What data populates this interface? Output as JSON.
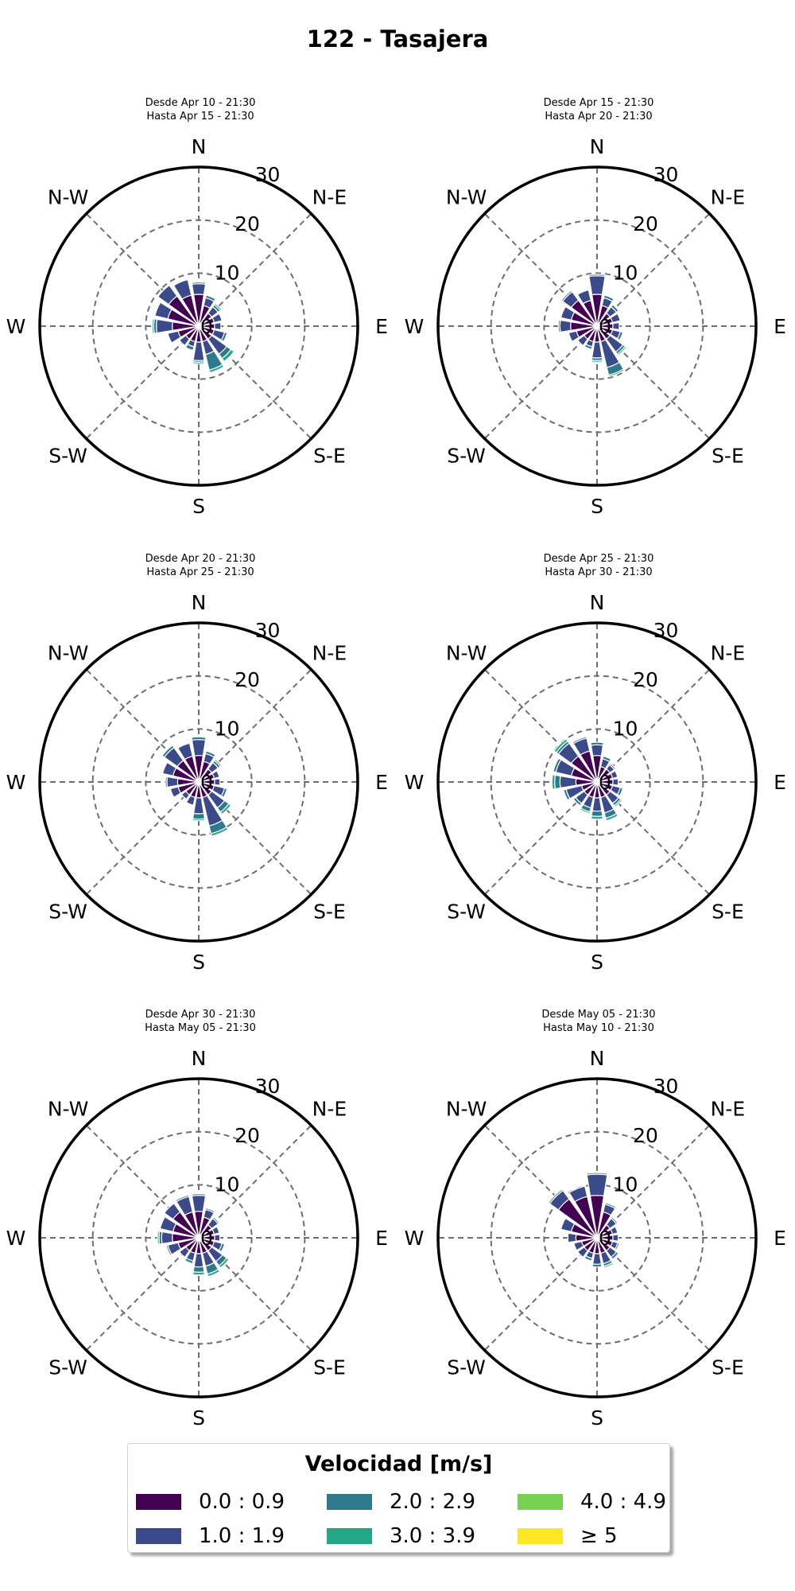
{
  "title": "122 - Tasajera",
  "directions": [
    "N",
    "N-E",
    "E",
    "S-E",
    "S",
    "S-W",
    "W",
    "N-W"
  ],
  "ring_labels": [
    "0",
    "10",
    "20",
    "30"
  ],
  "legend": {
    "title": "Velocidad [m/s]",
    "bins": [
      {
        "label": "0.0 : 0.9",
        "color": "#440154"
      },
      {
        "label": "1.0 : 1.9",
        "color": "#3b4a8a"
      },
      {
        "label": "2.0 : 2.9",
        "color": "#2c7a8c"
      },
      {
        "label": "3.0 : 3.9",
        "color": "#22a884"
      },
      {
        "label": "4.0 : 4.9",
        "color": "#7ad151"
      },
      {
        "label": "≥  5",
        "color": "#fde725"
      }
    ]
  },
  "panels": [
    {
      "desde": "Desde Apr 10 - 21:30",
      "hasta": "Hasta Apr 15 - 21:30"
    },
    {
      "desde": "Desde Apr 15 - 21:30",
      "hasta": "Hasta Apr 20 - 21:30"
    },
    {
      "desde": "Desde Apr 20 - 21:30",
      "hasta": "Hasta Apr 25 - 21:30"
    },
    {
      "desde": "Desde Apr 25 - 21:30",
      "hasta": "Hasta Apr 30 - 21:30"
    },
    {
      "desde": "Desde Apr 30 - 21:30",
      "hasta": "Hasta May 05 - 21:30"
    },
    {
      "desde": "Desde May 05 - 21:30",
      "hasta": "Hasta May 10 - 21:30"
    }
  ],
  "chart_data": [
    {
      "type": "windrose",
      "rmax": 30,
      "rticks": [
        0,
        10,
        20,
        30
      ],
      "sectors": 16,
      "directions_deg": [
        0,
        22.5,
        45,
        67.5,
        90,
        112.5,
        135,
        157.5,
        180,
        202.5,
        225,
        247.5,
        270,
        292.5,
        315,
        337.5
      ],
      "bins": [
        "0.0 : 0.9",
        "1.0 : 1.9",
        "2.0 : 2.9",
        "3.0 : 3.9",
        "4.0 : 4.9",
        "≥  5"
      ],
      "values": [
        [
          6,
          2,
          0.3,
          0,
          0,
          0
        ],
        [
          4,
          1.5,
          0.5,
          0,
          0,
          0
        ],
        [
          3,
          1.5,
          0.5,
          0.3,
          0,
          0
        ],
        [
          3,
          1.5,
          0,
          0,
          0,
          0
        ],
        [
          3,
          1.2,
          0,
          0,
          0,
          0
        ],
        [
          3,
          2,
          0.5,
          0,
          0,
          0
        ],
        [
          3,
          3.5,
          1,
          0.7,
          0,
          0
        ],
        [
          3,
          2.5,
          3,
          0.5,
          0,
          0
        ],
        [
          3,
          3.5,
          0.3,
          0.3,
          0,
          0
        ],
        [
          3,
          1,
          0.7,
          0,
          0,
          0
        ],
        [
          3,
          1.5,
          0,
          0,
          0,
          0
        ],
        [
          4,
          2,
          0,
          0,
          0,
          0
        ],
        [
          5,
          3,
          0.5,
          0.3,
          0,
          0
        ],
        [
          6,
          2.5,
          0,
          0,
          0,
          0
        ],
        [
          7,
          2.5,
          0,
          0,
          0,
          0
        ],
        [
          6,
          3,
          0,
          0,
          0,
          0
        ]
      ]
    },
    {
      "type": "windrose",
      "rmax": 30,
      "rticks": [
        0,
        10,
        20,
        30
      ],
      "sectors": 16,
      "directions_deg": [
        0,
        22.5,
        45,
        67.5,
        90,
        112.5,
        135,
        157.5,
        180,
        202.5,
        225,
        247.5,
        270,
        292.5,
        315,
        337.5
      ],
      "bins": [
        "0.0 : 0.9",
        "1.0 : 1.9",
        "2.0 : 2.9",
        "3.0 : 3.9",
        "4.0 : 4.9",
        "≥  5"
      ],
      "values": [
        [
          6,
          3.5,
          0.3,
          0,
          0,
          0
        ],
        [
          4,
          1.5,
          0.5,
          0,
          0,
          0
        ],
        [
          3,
          1.5,
          0.5,
          0,
          0,
          0
        ],
        [
          3,
          1.5,
          0,
          0,
          0,
          0
        ],
        [
          3,
          1.2,
          0,
          0,
          0,
          0
        ],
        [
          3,
          1.5,
          0.5,
          0,
          0,
          0
        ],
        [
          3,
          3,
          0.5,
          0.3,
          0,
          0
        ],
        [
          3,
          5,
          1.5,
          0.3,
          0,
          0
        ],
        [
          3,
          3,
          0.5,
          0.3,
          0,
          0
        ],
        [
          3,
          1,
          0.5,
          0,
          0,
          0
        ],
        [
          3,
          1.5,
          0,
          0,
          0,
          0
        ],
        [
          4,
          1.5,
          0,
          0,
          0,
          0
        ],
        [
          5,
          2,
          0.3,
          0,
          0,
          0
        ],
        [
          5,
          2,
          0,
          0,
          0,
          0
        ],
        [
          6,
          2,
          0.3,
          0,
          0,
          0
        ],
        [
          5,
          2,
          0,
          0,
          0,
          0
        ]
      ]
    },
    {
      "type": "windrose",
      "rmax": 30,
      "rticks": [
        0,
        10,
        20,
        30
      ],
      "sectors": 16,
      "directions_deg": [
        0,
        22.5,
        45,
        67.5,
        90,
        112.5,
        135,
        157.5,
        180,
        202.5,
        225,
        247.5,
        270,
        292.5,
        315,
        337.5
      ],
      "bins": [
        "0.0 : 0.9",
        "1.0 : 1.9",
        "2.0 : 2.9",
        "3.0 : 3.9",
        "4.0 : 4.9",
        "≥  5"
      ],
      "values": [
        [
          5,
          3,
          0.5,
          0,
          0,
          0
        ],
        [
          4,
          1.5,
          0.5,
          0,
          0,
          0
        ],
        [
          3,
          1.5,
          0.5,
          0.3,
          0,
          0
        ],
        [
          3,
          1,
          0,
          0,
          0,
          0
        ],
        [
          3,
          1,
          0,
          0,
          0,
          0
        ],
        [
          3,
          2,
          0.5,
          0,
          0,
          0
        ],
        [
          3,
          3,
          1,
          0.5,
          0,
          0
        ],
        [
          3,
          5.5,
          1.5,
          0.5,
          0,
          0
        ],
        [
          3,
          3,
          1,
          0.3,
          0,
          0
        ],
        [
          3,
          1.5,
          0,
          0,
          0,
          0
        ],
        [
          3,
          1,
          0,
          0,
          0,
          0
        ],
        [
          4,
          1.5,
          0,
          0,
          0,
          0
        ],
        [
          4,
          2,
          0.3,
          0,
          0,
          0
        ],
        [
          5,
          2,
          0,
          0,
          0,
          0
        ],
        [
          5,
          3,
          0.5,
          0,
          0,
          0
        ],
        [
          5,
          2.5,
          0,
          0,
          0,
          0
        ]
      ]
    },
    {
      "type": "windrose",
      "rmax": 30,
      "rticks": [
        0,
        10,
        20,
        30
      ],
      "sectors": 16,
      "directions_deg": [
        0,
        22.5,
        45,
        67.5,
        90,
        112.5,
        135,
        157.5,
        180,
        202.5,
        225,
        247.5,
        270,
        292.5,
        315,
        337.5
      ],
      "bins": [
        "0.0 : 0.9",
        "1.0 : 1.9",
        "2.0 : 2.9",
        "3.0 : 3.9",
        "4.0 : 4.9",
        "≥  5"
      ],
      "values": [
        [
          5,
          2,
          0.5,
          0,
          0,
          0
        ],
        [
          3,
          1.5,
          0.5,
          0,
          0,
          0
        ],
        [
          3,
          1,
          0.3,
          0,
          0,
          0
        ],
        [
          3,
          1,
          0,
          0,
          0,
          0
        ],
        [
          3,
          1,
          0,
          0,
          0,
          0
        ],
        [
          3,
          1.5,
          0.5,
          0,
          0,
          0
        ],
        [
          3,
          2,
          0.5,
          0.3,
          0,
          0
        ],
        [
          3,
          3,
          1,
          0.5,
          0,
          0
        ],
        [
          3,
          2.5,
          1,
          0.5,
          0,
          0
        ],
        [
          3,
          2,
          0.8,
          0.3,
          0,
          0
        ],
        [
          3,
          2,
          0.5,
          0,
          0,
          0
        ],
        [
          3,
          3,
          0.5,
          0,
          0,
          0
        ],
        [
          4,
          3,
          1,
          0.5,
          0,
          0
        ],
        [
          5,
          3,
          0.5,
          0,
          0,
          0
        ],
        [
          6,
          3,
          0.5,
          0.5,
          0,
          0
        ],
        [
          6,
          2.5,
          0.3,
          0,
          0,
          0
        ]
      ]
    },
    {
      "type": "windrose",
      "rmax": 30,
      "rticks": [
        0,
        10,
        20,
        30
      ],
      "sectors": 16,
      "directions_deg": [
        0,
        22.5,
        45,
        67.5,
        90,
        112.5,
        135,
        157.5,
        180,
        202.5,
        225,
        247.5,
        270,
        292.5,
        315,
        337.5
      ],
      "bins": [
        "0.0 : 0.9",
        "1.0 : 1.9",
        "2.0 : 2.9",
        "3.0 : 3.9",
        "4.0 : 4.9",
        "≥  5"
      ],
      "values": [
        [
          5,
          3,
          0.3,
          0,
          0,
          0
        ],
        [
          4,
          1.5,
          0.3,
          0,
          0,
          0
        ],
        [
          3,
          1.5,
          0.3,
          0,
          0,
          0
        ],
        [
          3,
          1,
          0,
          0,
          0,
          0
        ],
        [
          3,
          1,
          0,
          0,
          0,
          0
        ],
        [
          3,
          1.5,
          0.5,
          0,
          0,
          0
        ],
        [
          3,
          2.5,
          1,
          0.5,
          0,
          0
        ],
        [
          3,
          2.5,
          1.5,
          0.5,
          0,
          0
        ],
        [
          3,
          2.5,
          1,
          0.5,
          0,
          0
        ],
        [
          3,
          1.5,
          0.5,
          0,
          0,
          0
        ],
        [
          3,
          1.5,
          0,
          0,
          0,
          0
        ],
        [
          4,
          2,
          0.3,
          0,
          0,
          0
        ],
        [
          5,
          2,
          0.5,
          0.3,
          0,
          0
        ],
        [
          5,
          2.5,
          0,
          0,
          0,
          0
        ],
        [
          6,
          2,
          0,
          0,
          0,
          0
        ],
        [
          5,
          3,
          0.3,
          0,
          0,
          0
        ]
      ]
    },
    {
      "type": "windrose",
      "rmax": 30,
      "rticks": [
        0,
        10,
        20,
        30
      ],
      "sectors": 16,
      "directions_deg": [
        0,
        22.5,
        45,
        67.5,
        90,
        112.5,
        135,
        157.5,
        180,
        202.5,
        225,
        247.5,
        270,
        292.5,
        315,
        337.5
      ],
      "bins": [
        "0.0 : 0.9",
        "1.0 : 1.9",
        "2.0 : 2.9",
        "3.0 : 3.9",
        "4.0 : 4.9",
        "≥  5"
      ],
      "values": [
        [
          8,
          4,
          0.3,
          0,
          0,
          0
        ],
        [
          5,
          1.5,
          0.3,
          0,
          0,
          0
        ],
        [
          3,
          1.5,
          0.3,
          0,
          0,
          0
        ],
        [
          3,
          1,
          0,
          0,
          0,
          0
        ],
        [
          3,
          1,
          0,
          0,
          0,
          0
        ],
        [
          3,
          1,
          0.3,
          0,
          0,
          0
        ],
        [
          3,
          1.5,
          0.5,
          0,
          0,
          0
        ],
        [
          3,
          2,
          0.5,
          0.3,
          0,
          0
        ],
        [
          3,
          2,
          0.5,
          0,
          0,
          0
        ],
        [
          3,
          1,
          0.5,
          0,
          0,
          0
        ],
        [
          3,
          1.5,
          0,
          0,
          0,
          0
        ],
        [
          3,
          1.5,
          0,
          0,
          0,
          0
        ],
        [
          4,
          1.5,
          0,
          0,
          0,
          0
        ],
        [
          5,
          2,
          0,
          0,
          0,
          0
        ],
        [
          9,
          2,
          0.3,
          0,
          0,
          0
        ],
        [
          8,
          2,
          0,
          0,
          0,
          0
        ]
      ]
    }
  ]
}
